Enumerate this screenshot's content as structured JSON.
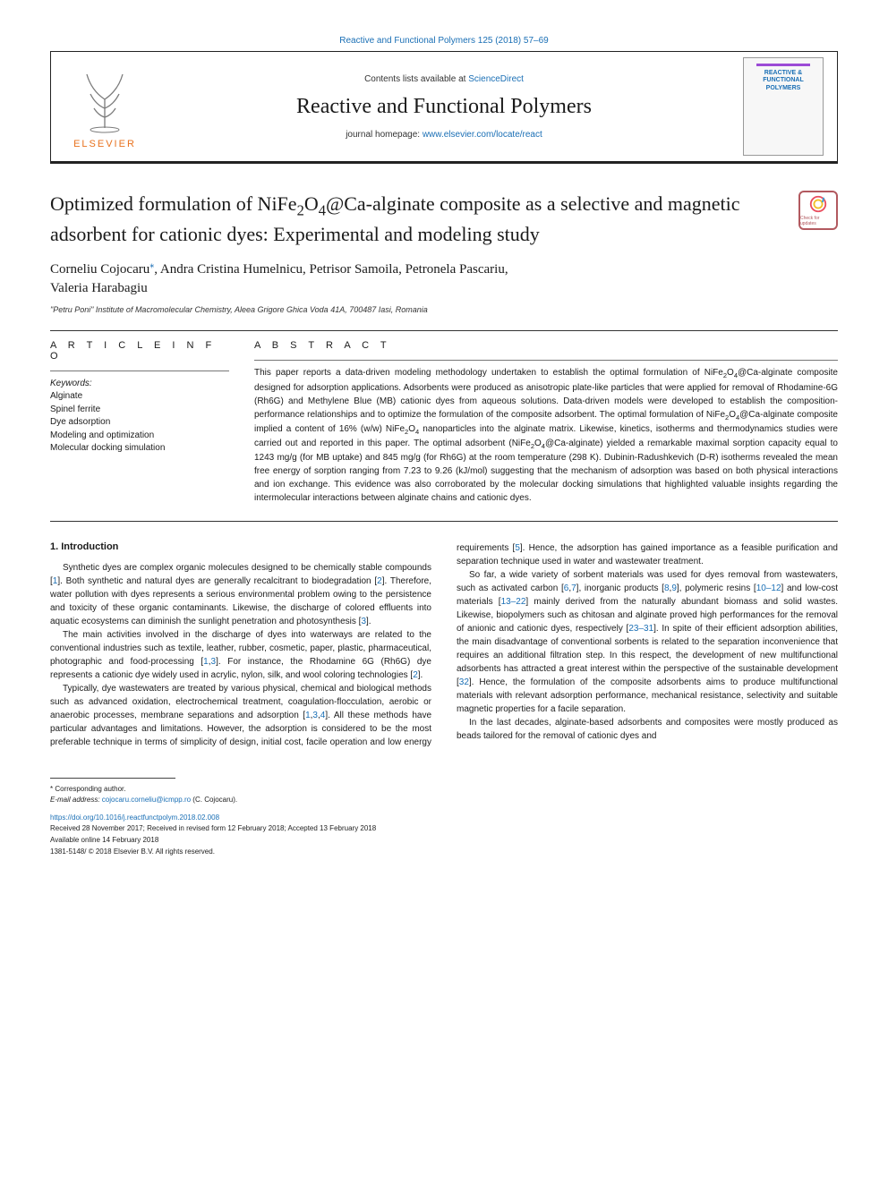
{
  "header": {
    "journal_link_text": "Reactive and Functional Polymers 125 (2018) 57–69",
    "contents_prefix": "Contents lists available at ",
    "contents_link": "ScienceDirect",
    "journal_name": "Reactive and Functional Polymers",
    "homepage_prefix": "journal homepage: ",
    "homepage_url": "www.elsevier.com/locate/react",
    "publisher": "ELSEVIER",
    "cover_title": "REACTIVE & FUNCTIONAL POLYMERS"
  },
  "article": {
    "title_html": "Optimized formulation of NiFe<sub>2</sub>O<sub>4</sub>@Ca-alginate composite as a selective and magnetic adsorbent for cationic dyes: Experimental and modeling study",
    "crossmark_label": "Check for updates",
    "authors_line": "Corneliu Cojocaru*, Andra Cristina Humelnicu, Petrisor Samoila, Petronela Pascariu, Valeria Harabagiu",
    "affiliation": "\"Petru Poni\" Institute of Macromolecular Chemistry, Aleea Grigore Ghica Voda 41A, 700487 Iasi, Romania"
  },
  "article_info": {
    "heading": "A R T I C L E  I N F O",
    "keywords_label": "Keywords:",
    "keywords": [
      "Alginate",
      "Spinel ferrite",
      "Dye adsorption",
      "Modeling and optimization",
      "Molecular docking simulation"
    ]
  },
  "abstract": {
    "heading": "A B S T R A C T",
    "text_html": "This paper reports a data-driven modeling methodology undertaken to establish the optimal formulation of NiFe<sub>2</sub>O<sub>4</sub>@Ca-alginate composite designed for adsorption applications. Adsorbents were produced as anisotropic plate-like particles that were applied for removal of Rhodamine-6G (Rh6G) and Methylene Blue (MB) cationic dyes from aqueous solutions. Data-driven models were developed to establish the composition-performance relationships and to optimize the formulation of the composite adsorbent. The optimal formulation of NiFe<sub>2</sub>O<sub>4</sub>@Ca-alginate composite implied a content of 16% (w/w) NiFe<sub>2</sub>O<sub>4</sub> nanoparticles into the alginate matrix. Likewise, kinetics, isotherms and thermodynamics studies were carried out and reported in this paper. The optimal adsorbent (NiFe<sub>2</sub>O<sub>4</sub>@Ca-alginate) yielded a remarkable maximal sorption capacity equal to 1243 mg/g (for MB uptake) and 845 mg/g (for Rh6G) at the room temperature (298 K). Dubinin-Radushkevich (D-R) isotherms revealed the mean free energy of sorption ranging from 7.23 to 9.26 (kJ/mol) suggesting that the mechanism of adsorption was based on both physical interactions and ion exchange. This evidence was also corroborated by the molecular docking simulations that highlighted valuable insights regarding the intermolecular interactions between alginate chains and cationic dyes."
  },
  "body": {
    "section1_title": "1. Introduction",
    "paragraphs": [
      "Synthetic dyes are complex organic molecules designed to be chemically stable compounds [<span class=\"ref-link\">1</span>]. Both synthetic and natural dyes are generally recalcitrant to biodegradation [<span class=\"ref-link\">2</span>]. Therefore, water pollution with dyes represents a serious environmental problem owing to the persistence and toxicity of these organic contaminants. Likewise, the discharge of colored effluents into aquatic ecosystems can diminish the sunlight penetration and photosynthesis [<span class=\"ref-link\">3</span>].",
      "The main activities involved in the discharge of dyes into waterways are related to the conventional industries such as textile, leather, rubber, cosmetic, paper, plastic, pharmaceutical, photographic and food-processing [<span class=\"ref-link\">1</span>,<span class=\"ref-link\">3</span>]. For instance, the Rhodamine 6G (Rh6G) dye represents a cationic dye widely used in acrylic, nylon, silk, and wool coloring technologies [<span class=\"ref-link\">2</span>].",
      "Typically, dye wastewaters are treated by various physical, chemical and biological methods such as advanced oxidation, electrochemical treatment, coagulation-flocculation, aerobic or anaerobic processes, membrane separations and adsorption [<span class=\"ref-link\">1</span>,<span class=\"ref-link\">3</span>,<span class=\"ref-link\">4</span>]. All these methods have particular advantages and limitations. However, the adsorption is considered to be the most preferable technique in terms of simplicity of design, initial cost, facile operation and low energy requirements [<span class=\"ref-link\">5</span>]. Hence, the adsorption has gained importance as a feasible purification and separation technique used in water and wastewater treatment.",
      "So far, a wide variety of sorbent materials was used for dyes removal from wastewaters, such as activated carbon [<span class=\"ref-link\">6</span>,<span class=\"ref-link\">7</span>], inorganic products [<span class=\"ref-link\">8</span>,<span class=\"ref-link\">9</span>], polymeric resins [<span class=\"ref-link\">10–12</span>] and low-cost materials [<span class=\"ref-link\">13–22</span>] mainly derived from the naturally abundant biomass and solid wastes. Likewise, biopolymers such as chitosan and alginate proved high performances for the removal of anionic and cationic dyes, respectively [<span class=\"ref-link\">23–31</span>]. In spite of their efficient adsorption abilities, the main disadvantage of conventional sorbents is related to the separation inconvenience that requires an additional filtration step. In this respect, the development of new multifunctional adsorbents has attracted a great interest within the perspective of the sustainable development [<span class=\"ref-link\">32</span>]. Hence, the formulation of the composite adsorbents aims to produce multifunctional materials with relevant adsorption performance, mechanical resistance, selectivity and suitable magnetic properties for a facile separation.",
      "In the last decades, alginate-based adsorbents and composites were mostly produced as beads tailored for the removal of cationic dyes and"
    ]
  },
  "footnotes": {
    "corresponding": "* Corresponding author.",
    "email_label": "E-mail address: ",
    "email": "cojocaru.corneliu@icmpp.ro",
    "email_person": " (C. Cojocaru)."
  },
  "footer": {
    "doi": "https://doi.org/10.1016/j.reactfunctpolym.2018.02.008",
    "history": "Received 28 November 2017; Received in revised form 12 February 2018; Accepted 13 February 2018",
    "available": "Available online 14 February 2018",
    "issn": "1381-5148/ © 2018 Elsevier B.V. All rights reserved."
  },
  "colors": {
    "link": "#1a6fb5",
    "elsevier_orange": "#e8721e",
    "crossmark_ring": "#b2595f"
  }
}
